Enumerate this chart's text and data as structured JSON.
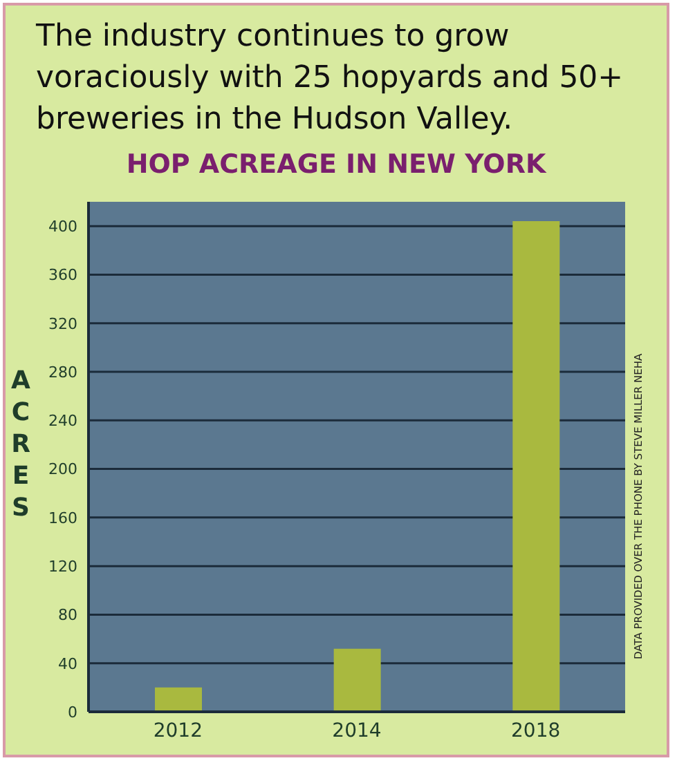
{
  "chart_data": {
    "type": "bar",
    "title": "The industry continues to grow voraciously with 25 hopyards and 50+ breweries in the Hudson Valley.",
    "subtitle": "HOP ACREAGE IN NEW YORK",
    "ylabel": "ACRES",
    "annotations": [
      "DATA PROVIDED OVER THE PHONE BY STEVE MILLER NEHA"
    ],
    "categories": [
      "2012",
      "2014",
      "2018"
    ],
    "values": [
      20,
      52,
      404
    ],
    "color": "#a9b93f",
    "ylim": [
      0,
      420
    ],
    "yticks": [
      0,
      40,
      80,
      120,
      160,
      200,
      240,
      280,
      320,
      360,
      400
    ],
    "grid": "y",
    "legend": false
  }
}
